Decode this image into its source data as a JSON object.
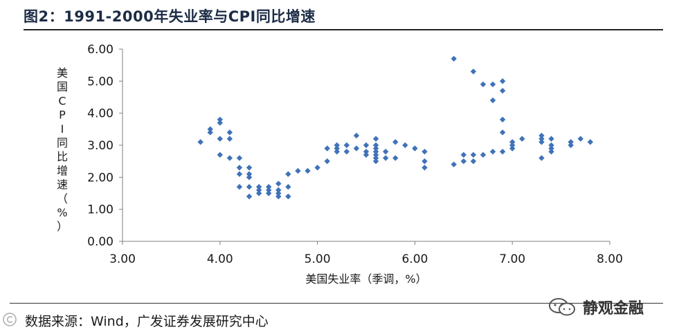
{
  "header": {
    "title": "图2：1991-2000年失业率与CPI同比增速"
  },
  "footer": {
    "source": "数据来源：Wind，广发证券发展研究中心",
    "watermark": "静观金融"
  },
  "chart_data": {
    "type": "scatter",
    "title": "",
    "xlabel": "美国失业率（季调，%）",
    "ylabel": "美国CPI同比增速（%）",
    "xlim": [
      3.0,
      8.0
    ],
    "ylim": [
      0.0,
      6.0
    ],
    "x_ticks": [
      "3.00",
      "4.00",
      "5.00",
      "6.00",
      "7.00",
      "8.00"
    ],
    "y_ticks": [
      "0.00",
      "1.00",
      "2.00",
      "3.00",
      "4.00",
      "5.00",
      "6.00"
    ],
    "grid": false,
    "legend": "none",
    "marker": "diamond",
    "color": "#3f72b8",
    "points": [
      [
        3.8,
        3.1
      ],
      [
        3.9,
        3.4
      ],
      [
        3.9,
        3.5
      ],
      [
        4.0,
        3.7
      ],
      [
        4.0,
        3.8
      ],
      [
        4.0,
        3.2
      ],
      [
        4.0,
        2.7
      ],
      [
        4.1,
        3.4
      ],
      [
        4.1,
        3.2
      ],
      [
        4.1,
        2.6
      ],
      [
        4.2,
        2.6
      ],
      [
        4.2,
        2.3
      ],
      [
        4.2,
        2.1
      ],
      [
        4.2,
        1.7
      ],
      [
        4.3,
        2.3
      ],
      [
        4.3,
        2.1
      ],
      [
        4.3,
        2.0
      ],
      [
        4.3,
        1.7
      ],
      [
        4.3,
        1.4
      ],
      [
        4.4,
        1.7
      ],
      [
        4.4,
        1.6
      ],
      [
        4.4,
        1.5
      ],
      [
        4.5,
        1.7
      ],
      [
        4.5,
        1.6
      ],
      [
        4.5,
        1.5
      ],
      [
        4.6,
        1.8
      ],
      [
        4.6,
        1.6
      ],
      [
        4.6,
        1.5
      ],
      [
        4.6,
        1.4
      ],
      [
        4.7,
        2.1
      ],
      [
        4.7,
        1.7
      ],
      [
        4.7,
        1.4
      ],
      [
        4.8,
        2.2
      ],
      [
        4.9,
        2.2
      ],
      [
        5.0,
        2.3
      ],
      [
        5.1,
        2.9
      ],
      [
        5.1,
        2.5
      ],
      [
        5.2,
        3.0
      ],
      [
        5.2,
        2.9
      ],
      [
        5.2,
        2.8
      ],
      [
        5.3,
        3.0
      ],
      [
        5.3,
        2.8
      ],
      [
        5.4,
        3.3
      ],
      [
        5.4,
        2.9
      ],
      [
        5.5,
        3.0
      ],
      [
        5.5,
        2.8
      ],
      [
        5.5,
        2.7
      ],
      [
        5.6,
        3.2
      ],
      [
        5.6,
        3.0
      ],
      [
        5.6,
        2.9
      ],
      [
        5.6,
        2.8
      ],
      [
        5.6,
        2.7
      ],
      [
        5.6,
        2.6
      ],
      [
        5.6,
        2.5
      ],
      [
        5.7,
        2.8
      ],
      [
        5.7,
        2.6
      ],
      [
        5.8,
        3.1
      ],
      [
        5.8,
        2.6
      ],
      [
        5.9,
        3.0
      ],
      [
        6.0,
        2.9
      ],
      [
        6.1,
        2.8
      ],
      [
        6.1,
        2.5
      ],
      [
        6.1,
        2.3
      ],
      [
        6.4,
        5.7
      ],
      [
        6.4,
        2.4
      ],
      [
        6.5,
        2.7
      ],
      [
        6.5,
        2.5
      ],
      [
        6.6,
        5.3
      ],
      [
        6.6,
        2.7
      ],
      [
        6.6,
        2.5
      ],
      [
        6.7,
        4.9
      ],
      [
        6.7,
        2.7
      ],
      [
        6.8,
        4.9
      ],
      [
        6.8,
        4.4
      ],
      [
        6.8,
        2.8
      ],
      [
        6.9,
        5.0
      ],
      [
        6.9,
        4.7
      ],
      [
        6.9,
        3.8
      ],
      [
        6.9,
        3.4
      ],
      [
        6.9,
        2.8
      ],
      [
        7.0,
        3.1
      ],
      [
        7.0,
        3.0
      ],
      [
        7.0,
        2.9
      ],
      [
        7.1,
        3.2
      ],
      [
        7.3,
        3.3
      ],
      [
        7.3,
        3.2
      ],
      [
        7.3,
        3.1
      ],
      [
        7.3,
        2.6
      ],
      [
        7.4,
        3.2
      ],
      [
        7.4,
        3.0
      ],
      [
        7.4,
        2.9
      ],
      [
        7.4,
        2.8
      ],
      [
        7.6,
        3.1
      ],
      [
        7.6,
        3.0
      ],
      [
        7.7,
        3.2
      ],
      [
        7.8,
        3.1
      ]
    ]
  }
}
